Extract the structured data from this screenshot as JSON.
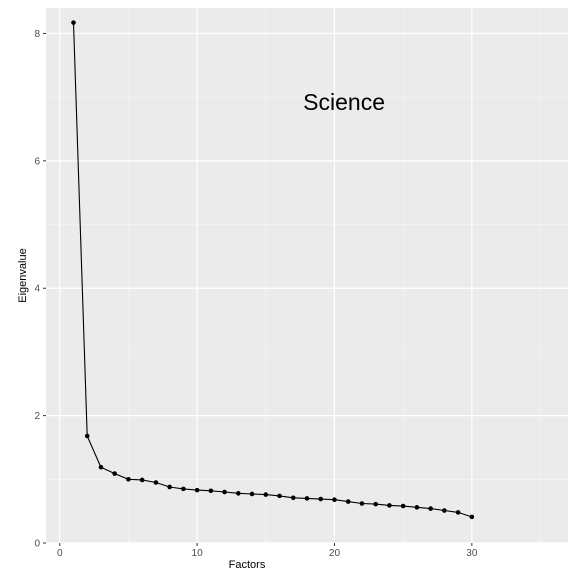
{
  "chart_data": {
    "type": "line",
    "title": "",
    "annotation": "Science",
    "xlabel": "Factors",
    "ylabel": "Eigenvalue",
    "xlim": [
      -1,
      37
    ],
    "ylim": [
      0,
      8.4
    ],
    "x_ticks": [
      0,
      10,
      20,
      30
    ],
    "y_ticks": [
      0,
      2,
      4,
      6,
      8
    ],
    "grid": true,
    "series": [
      {
        "x": [
          1,
          2,
          3,
          4,
          5,
          6,
          7,
          8,
          9,
          10,
          11,
          12,
          13,
          14,
          15,
          16,
          17,
          18,
          19,
          20,
          21,
          22,
          23,
          24,
          25,
          26,
          27,
          28,
          29,
          30
        ],
        "values": [
          8.17,
          1.68,
          1.19,
          1.09,
          1.0,
          0.99,
          0.95,
          0.88,
          0.85,
          0.83,
          0.82,
          0.8,
          0.78,
          0.77,
          0.76,
          0.74,
          0.71,
          0.7,
          0.69,
          0.68,
          0.65,
          0.62,
          0.61,
          0.59,
          0.58,
          0.56,
          0.54,
          0.51,
          0.48,
          0.41
        ]
      }
    ],
    "colors": {
      "panel": "#ebebeb",
      "grid_major": "#ffffff",
      "line": "#000000"
    }
  }
}
